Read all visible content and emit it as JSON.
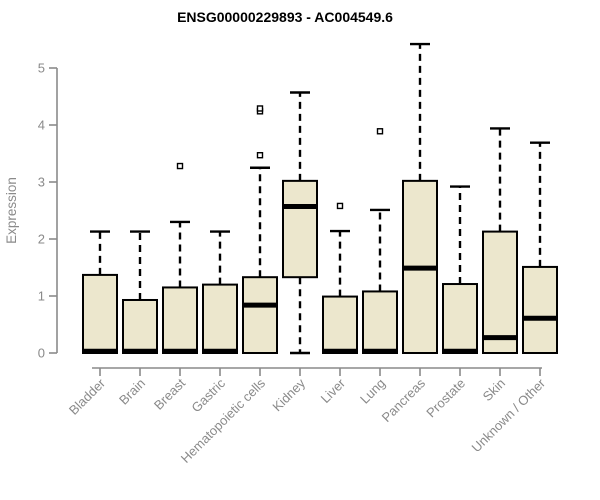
{
  "chart_data": {
    "type": "boxplot",
    "title": "ENSG00000229893 - AC004549.6",
    "xlabel": "",
    "ylabel": "Expression",
    "ylim": [
      0,
      5.45
    ],
    "yticks": [
      0,
      1,
      2,
      3,
      4,
      5
    ],
    "grid": false,
    "legend": "none",
    "categories": [
      "Bladder",
      "Brain",
      "Breast",
      "Gastric",
      "Hematopoietic cells",
      "Kidney",
      "Liver",
      "Lung",
      "Pancreas",
      "Prostate",
      "Skin",
      "Unknown / Other"
    ],
    "series": [
      {
        "name": "Bladder",
        "low": 0,
        "q1": 0,
        "median": 0.03,
        "q3": 1.37,
        "high": 2.13,
        "outliers": []
      },
      {
        "name": "Brain",
        "low": 0,
        "q1": 0,
        "median": 0.03,
        "q3": 0.93,
        "high": 2.13,
        "outliers": []
      },
      {
        "name": "Breast",
        "low": 0,
        "q1": 0,
        "median": 0.03,
        "q3": 1.15,
        "high": 2.3,
        "outliers": [
          3.28
        ]
      },
      {
        "name": "Gastric",
        "low": 0,
        "q1": 0,
        "median": 0.03,
        "q3": 1.2,
        "high": 2.13,
        "outliers": []
      },
      {
        "name": "Hematopoietic cells",
        "low": 0,
        "q1": 0,
        "median": 0.84,
        "q3": 1.33,
        "high": 3.25,
        "outliers": [
          3.47,
          4.24,
          4.29
        ]
      },
      {
        "name": "Kidney",
        "low": 0,
        "q1": 1.33,
        "median": 2.57,
        "q3": 3.02,
        "high": 4.57,
        "outliers": []
      },
      {
        "name": "Liver",
        "low": 0,
        "q1": 0,
        "median": 0.03,
        "q3": 0.99,
        "high": 2.14,
        "outliers": [
          2.58
        ]
      },
      {
        "name": "Lung",
        "low": 0,
        "q1": 0,
        "median": 0.03,
        "q3": 1.08,
        "high": 2.51,
        "outliers": [
          3.89
        ]
      },
      {
        "name": "Pancreas",
        "low": 0,
        "q1": 0,
        "median": 1.49,
        "q3": 3.02,
        "high": 5.42,
        "outliers": []
      },
      {
        "name": "Prostate",
        "low": 0,
        "q1": 0,
        "median": 0.03,
        "q3": 1.21,
        "high": 2.92,
        "outliers": []
      },
      {
        "name": "Skin",
        "low": 0,
        "q1": 0,
        "median": 0.27,
        "q3": 2.13,
        "high": 3.94,
        "outliers": []
      },
      {
        "name": "Unknown / Other",
        "low": 0,
        "q1": 0,
        "median": 0.61,
        "q3": 1.51,
        "high": 3.69,
        "outliers": []
      }
    ],
    "colors": {
      "background": "#ffffff",
      "box_fill": "#ece7cd",
      "box_stroke": "#000000",
      "median": "#000000",
      "whisker": "#000000",
      "outlier_fill": "#ffffff",
      "axis": "#8a8a8a",
      "tick_label": "#8a8a8a",
      "title": "#000000"
    }
  }
}
